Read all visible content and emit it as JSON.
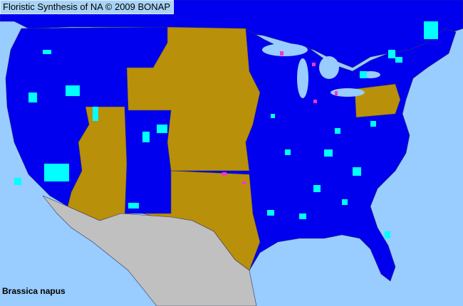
{
  "header": {
    "title": "Floristic Synthesis of NA © 2009 BONAP"
  },
  "map": {
    "species": "Brassica napus",
    "colors": {
      "ocean": "#99ccff",
      "present_native": "#0000ee",
      "state_present_not_county": "#b8900a",
      "county_present": "#00ffff",
      "county_rare_or_adventive": "#ff33cc",
      "outside_region": "#c0c0c0",
      "borders": "#333366"
    }
  }
}
